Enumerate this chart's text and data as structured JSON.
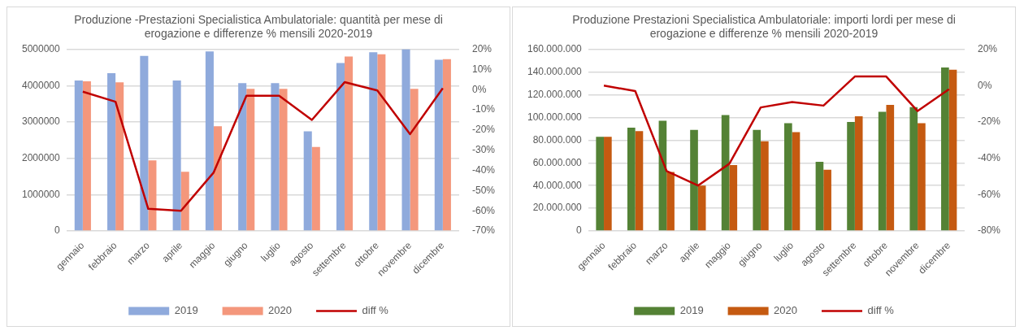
{
  "chart_data": [
    {
      "type": "bar",
      "title": "Produzione -Prestazioni Specialistica Ambulatoriale: quantità per mese di erogazione e differenze % mensili 2020-2019",
      "categories": [
        "gennaio",
        "febbraio",
        "marzo",
        "aprile",
        "maggio",
        "giugno",
        "luglio",
        "agosto",
        "settembre",
        "ottobre",
        "novembre",
        "dicembre"
      ],
      "series": [
        {
          "name": "2019",
          "color": "#8faadc",
          "values": [
            4140000,
            4340000,
            4820000,
            4140000,
            4940000,
            4070000,
            4070000,
            2740000,
            4620000,
            4920000,
            5000000,
            4710000
          ]
        },
        {
          "name": "2020",
          "color": "#f4977c",
          "values": [
            4120000,
            4090000,
            1940000,
            1630000,
            2880000,
            3910000,
            3910000,
            2310000,
            4800000,
            4860000,
            3910000,
            4730000
          ]
        },
        {
          "name": "diff %",
          "type": "line",
          "axis": "y2",
          "color": "#c00000",
          "values": [
            -1,
            -6,
            -59,
            -60,
            -41,
            -3,
            -3,
            -15,
            3.7,
            -0.4,
            -22,
            0.7
          ]
        }
      ],
      "ylim": [
        0,
        5000000
      ],
      "yticks": [
        0,
        1000000,
        2000000,
        3000000,
        4000000,
        5000000
      ],
      "y2lim": [
        -70,
        20
      ],
      "y2ticks": [
        {
          "value": -70,
          "label": "-70%"
        },
        {
          "value": -60,
          "label": "-60%"
        },
        {
          "value": -50,
          "label": "-50%"
        },
        {
          "value": -40,
          "label": "-40%"
        },
        {
          "value": -30,
          "label": "-30%"
        },
        {
          "value": -20,
          "label": "-20%"
        },
        {
          "value": -10,
          "label": "-10%"
        },
        {
          "value": 0,
          "label": "0%"
        },
        {
          "value": 10,
          "label": "10%"
        },
        {
          "value": 20,
          "label": "20%"
        }
      ],
      "grid": "y",
      "legend": "bottom",
      "marker": "none"
    },
    {
      "type": "bar",
      "title": "Produzione Prestazioni Specialistica Ambulatoriale: importi lordi per mese di erogazione e differenze % mensili 2020-2019",
      "categories": [
        "gennaio",
        "febbraio",
        "marzo",
        "aprile",
        "maggio",
        "giugno",
        "luglio",
        "agosto",
        "settembre",
        "ottobre",
        "novembre",
        "dicembre"
      ],
      "series": [
        {
          "name": "2019",
          "color": "#548235",
          "values": [
            83000000,
            91000000,
            97000000,
            89000000,
            102000000,
            89000000,
            95000000,
            61000000,
            96000000,
            105000000,
            109000000,
            144000000
          ]
        },
        {
          "name": "2020",
          "color": "#c55a11",
          "values": [
            83000000,
            88000000,
            52000000,
            40000000,
            58000000,
            79000000,
            87000000,
            54000000,
            101000000,
            111000000,
            95000000,
            142000000
          ]
        },
        {
          "name": "diff %",
          "type": "line",
          "axis": "y2",
          "color": "#c00000",
          "values": [
            0,
            -3,
            -47,
            -55,
            -43,
            -12,
            -9,
            -11,
            5,
            5,
            -14,
            -2
          ]
        }
      ],
      "ylim": [
        0,
        160000000
      ],
      "yticks": [
        {
          "value": 0,
          "label": "0"
        },
        {
          "value": 20000000,
          "label": "20.000.000"
        },
        {
          "value": 40000000,
          "label": "40.000.000"
        },
        {
          "value": 60000000,
          "label": "60.000.000"
        },
        {
          "value": 80000000,
          "label": "80.000.000"
        },
        {
          "value": 100000000,
          "label": "100.000.000"
        },
        {
          "value": 120000000,
          "label": "120.000.000"
        },
        {
          "value": 140000000,
          "label": "140.000.000"
        },
        {
          "value": 160000000,
          "label": "160.000.000"
        }
      ],
      "y2lim": [
        -80,
        20
      ],
      "y2ticks": [
        {
          "value": -80,
          "label": "-80%"
        },
        {
          "value": -60,
          "label": "-60%"
        },
        {
          "value": -40,
          "label": "-40%"
        },
        {
          "value": -20,
          "label": "-20%"
        },
        {
          "value": 0,
          "label": "0%"
        },
        {
          "value": 20,
          "label": "20%"
        }
      ],
      "grid": "y",
      "legend": "bottom",
      "marker": "none"
    }
  ]
}
